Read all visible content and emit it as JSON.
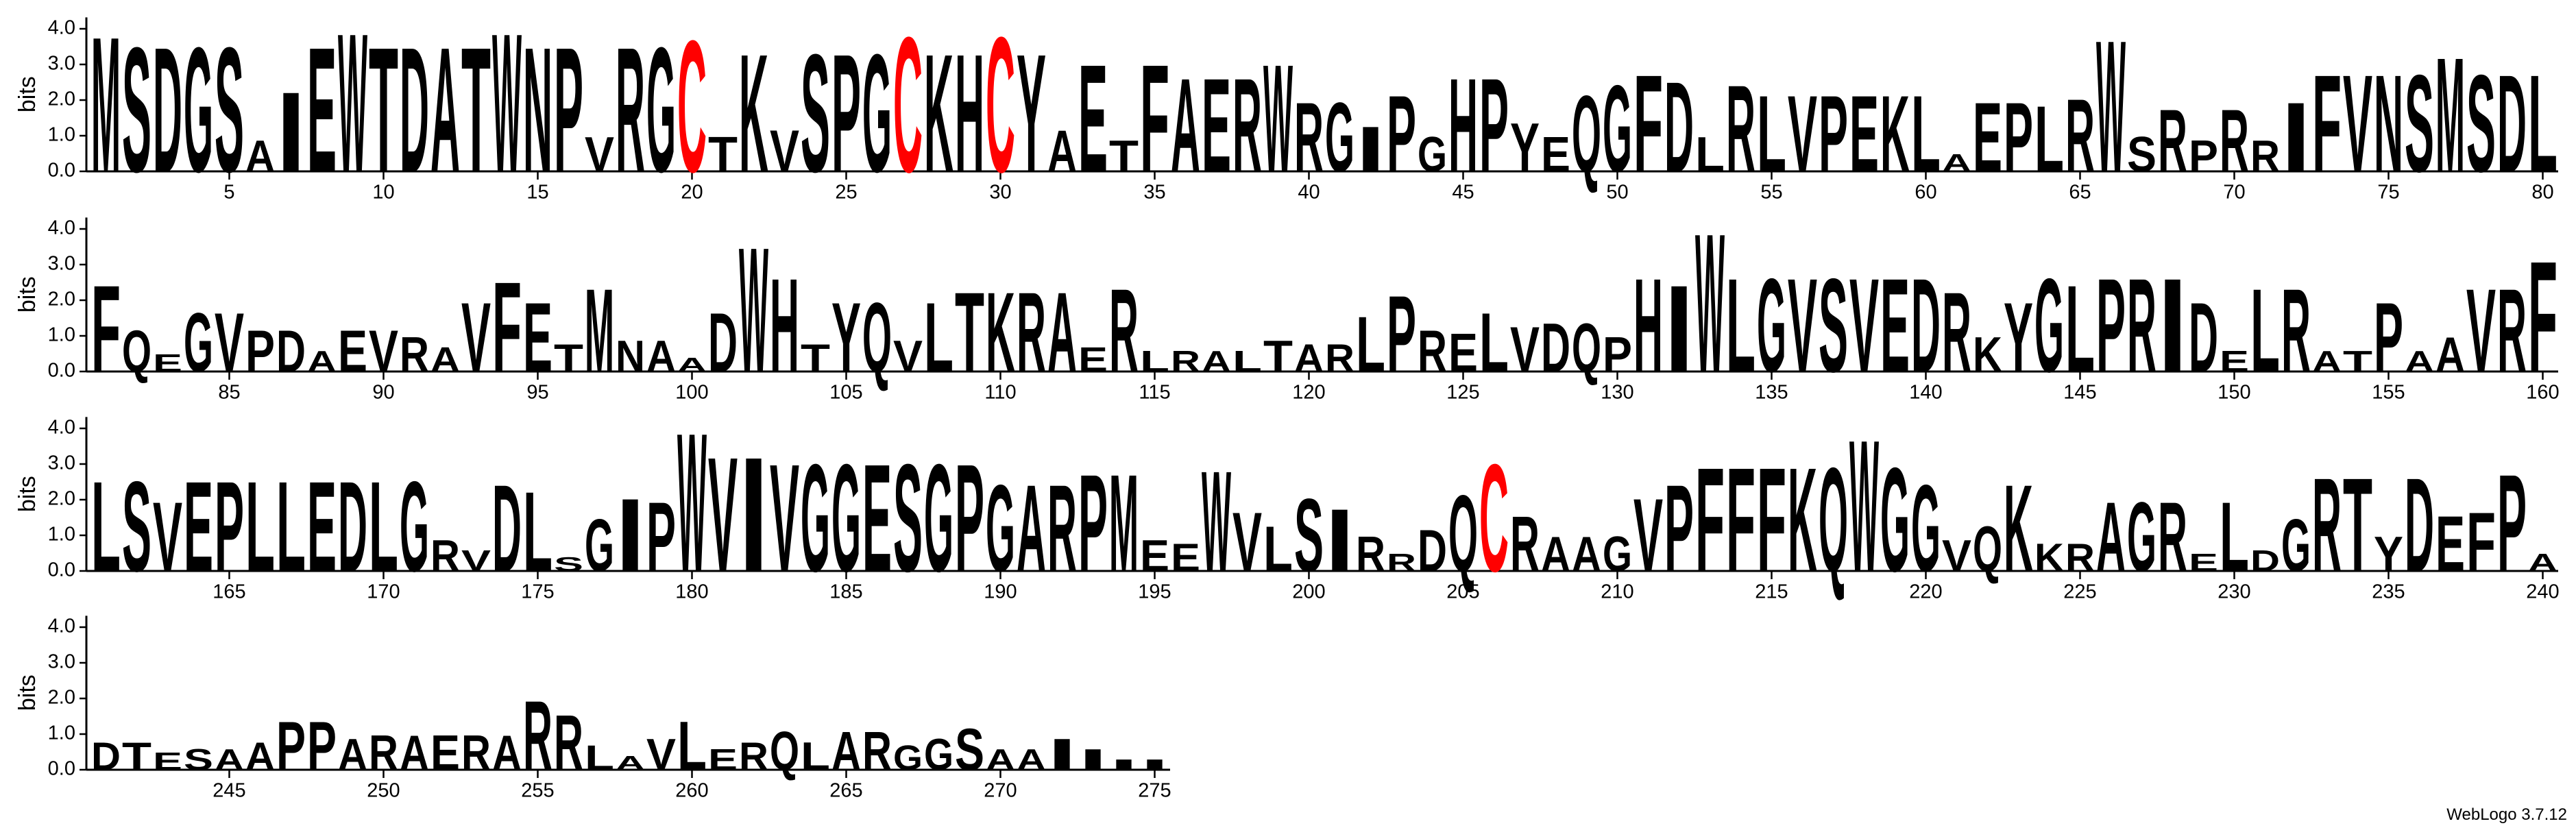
{
  "chart_data": [
    {
      "type": "logo",
      "y_label": "bits",
      "color": "#000000",
      "letter_colors": {
        "C": "#ff0000"
      },
      "xlim": [
        0.5,
        80.5
      ],
      "ylim": [
        0,
        4.32
      ],
      "yticks": [
        {
          "value": 0,
          "label": "0.0"
        },
        {
          "value": 1,
          "label": "1.0"
        },
        {
          "value": 2,
          "label": "2.0"
        },
        {
          "value": 3,
          "label": "3.0"
        },
        {
          "value": 4,
          "label": "4.0"
        }
      ],
      "xticks": [
        5,
        10,
        15,
        20,
        25,
        30,
        35,
        40,
        45,
        50,
        55,
        60,
        65,
        70,
        75,
        80
      ],
      "x": [
        1,
        2,
        3,
        4,
        5,
        6,
        7,
        8,
        9,
        10,
        11,
        12,
        13,
        14,
        15,
        16,
        17,
        18,
        19,
        20,
        21,
        22,
        23,
        24,
        25,
        26,
        27,
        28,
        29,
        30,
        31,
        32,
        33,
        34,
        35,
        36,
        37,
        38,
        39,
        40,
        41,
        42,
        43,
        44,
        45,
        46,
        47,
        48,
        49,
        50,
        51,
        52,
        53,
        54,
        55,
        56,
        57,
        58,
        59,
        60,
        61,
        62,
        63,
        64,
        65,
        66,
        67,
        68,
        69,
        70,
        71,
        72,
        73,
        74,
        75,
        76,
        77,
        78,
        79,
        80
      ],
      "letters": [
        "M",
        "S",
        "D",
        "G",
        "S",
        "A",
        "I",
        "E",
        "W",
        "T",
        "D",
        "A",
        "T",
        "W",
        "N",
        "P",
        "V",
        "R",
        "G",
        "C",
        "T",
        "K",
        "V",
        "S",
        "P",
        "G",
        "C",
        "K",
        "H",
        "C",
        "Y",
        "A",
        "E",
        "T",
        "F",
        "A",
        "E",
        "R",
        "W",
        "R",
        "G",
        "I",
        "P",
        "G",
        "H",
        "P",
        "Y",
        "E",
        "Q",
        "G",
        "F",
        "D",
        "L",
        "R",
        "L",
        "V",
        "P",
        "E",
        "K",
        "L",
        "A",
        "E",
        "P",
        "L",
        "R",
        "W",
        "S",
        "R",
        "P",
        "R",
        "R",
        "I",
        "F",
        "V",
        "N",
        "S",
        "M",
        "S",
        "D",
        "L"
      ],
      "values": [
        3.9,
        3.6,
        3.6,
        3.6,
        3.6,
        0.9,
        2.3,
        3.6,
        4.0,
        3.6,
        3.6,
        3.6,
        3.6,
        4.0,
        3.6,
        3.6,
        1.0,
        3.6,
        3.6,
        3.8,
        1.0,
        3.4,
        1.2,
        3.4,
        3.4,
        3.4,
        3.9,
        3.4,
        3.4,
        3.9,
        3.4,
        1.2,
        3.1,
        0.9,
        3.1,
        2.7,
        2.7,
        2.7,
        3.1,
        2.0,
        2.0,
        1.3,
        2.2,
        1.0,
        2.7,
        2.7,
        1.4,
        1.0,
        2.2,
        2.5,
        2.8,
        2.6,
        1.0,
        2.5,
        2.2,
        2.2,
        2.2,
        2.2,
        2.2,
        2.2,
        0.5,
        2.0,
        2.0,
        1.9,
        2.1,
        3.8,
        1.0,
        1.8,
        0.9,
        1.8,
        0.9,
        2.0,
        2.8,
        2.8,
        2.8,
        2.8,
        3.3,
        2.8,
        2.8,
        2.8
      ]
    },
    {
      "type": "logo",
      "y_label": "bits",
      "color": "#000000",
      "letter_colors": {
        "C": "#ff0000"
      },
      "xlim": [
        80.5,
        160.5
      ],
      "ylim": [
        0,
        4.32
      ],
      "yticks": [
        {
          "value": 0,
          "label": "0.0"
        },
        {
          "value": 1,
          "label": "1.0"
        },
        {
          "value": 2,
          "label": "2.0"
        },
        {
          "value": 3,
          "label": "3.0"
        },
        {
          "value": 4,
          "label": "4.0"
        }
      ],
      "xticks": [
        85,
        90,
        95,
        100,
        105,
        110,
        115,
        120,
        125,
        130,
        135,
        140,
        145,
        150,
        155,
        160
      ],
      "x": [
        81,
        82,
        83,
        84,
        85,
        86,
        87,
        88,
        89,
        90,
        91,
        92,
        93,
        94,
        95,
        96,
        97,
        98,
        99,
        100,
        101,
        102,
        103,
        104,
        105,
        106,
        107,
        108,
        109,
        110,
        111,
        112,
        113,
        114,
        115,
        116,
        117,
        118,
        119,
        120,
        121,
        122,
        123,
        124,
        125,
        126,
        127,
        128,
        129,
        130,
        131,
        132,
        133,
        134,
        135,
        136,
        137,
        138,
        139,
        140,
        141,
        142,
        143,
        144,
        145,
        146,
        147,
        148,
        149,
        150,
        151,
        152,
        153,
        154,
        155,
        156,
        157,
        158,
        159,
        160
      ],
      "letters": [
        "F",
        "Q",
        "E",
        "G",
        "V",
        "P",
        "D",
        "A",
        "E",
        "V",
        "R",
        "A",
        "V",
        "F",
        "E",
        "T",
        "M",
        "N",
        "A",
        "A",
        "D",
        "W",
        "H",
        "T",
        "Y",
        "Q",
        "V",
        "L",
        "T",
        "K",
        "R",
        "A",
        "E",
        "R",
        "L",
        "R",
        "A",
        "L",
        "T",
        "A",
        "R",
        "L",
        "P",
        "R",
        "E",
        "L",
        "V",
        "D",
        "Q",
        "P",
        "H",
        "I",
        "W",
        "L",
        "G",
        "V",
        "S",
        "V",
        "E",
        "D",
        "R",
        "K",
        "Y",
        "G",
        "L",
        "P",
        "R",
        "I",
        "D",
        "E",
        "L",
        "R",
        "A",
        "T",
        "P",
        "A",
        "A",
        "V",
        "R",
        "F"
      ],
      "values": [
        2.5,
        1.2,
        0.5,
        1.7,
        1.7,
        1.2,
        1.2,
        0.6,
        1.2,
        1.2,
        1.0,
        0.7,
        2.0,
        2.6,
        2.0,
        0.8,
        2.4,
        0.9,
        0.9,
        0.4,
        1.7,
        3.6,
        2.7,
        0.8,
        2.0,
        2.0,
        0.9,
        2.0,
        2.3,
        2.3,
        2.3,
        2.3,
        0.7,
        2.4,
        0.6,
        0.6,
        0.6,
        0.6,
        0.9,
        0.8,
        0.8,
        1.6,
        2.2,
        1.2,
        1.1,
        1.7,
        1.3,
        1.4,
        1.4,
        1.0,
        2.7,
        2.5,
        4.0,
        2.7,
        2.7,
        2.7,
        2.7,
        2.7,
        2.7,
        2.7,
        2.3,
        1.0,
        2.0,
        2.7,
        2.5,
        2.7,
        2.7,
        2.7,
        2.0,
        0.6,
        2.4,
        2.4,
        0.6,
        0.6,
        2.0,
        0.6,
        1.0,
        2.4,
        2.4,
        3.2
      ]
    },
    {
      "type": "logo",
      "y_label": "bits",
      "color": "#000000",
      "letter_colors": {
        "C": "#ff0000"
      },
      "xlim": [
        160.5,
        240.5
      ],
      "ylim": [
        0,
        4.32
      ],
      "yticks": [
        {
          "value": 0,
          "label": "0.0"
        },
        {
          "value": 1,
          "label": "1.0"
        },
        {
          "value": 2,
          "label": "2.0"
        },
        {
          "value": 3,
          "label": "3.0"
        },
        {
          "value": 4,
          "label": "4.0"
        }
      ],
      "xticks": [
        165,
        170,
        175,
        180,
        185,
        190,
        195,
        200,
        205,
        210,
        215,
        220,
        225,
        230,
        235,
        240
      ],
      "x": [
        161,
        162,
        163,
        164,
        165,
        166,
        167,
        168,
        169,
        170,
        171,
        172,
        173,
        174,
        175,
        176,
        177,
        178,
        179,
        180,
        181,
        182,
        183,
        184,
        185,
        186,
        187,
        188,
        189,
        190,
        191,
        192,
        193,
        194,
        195,
        196,
        197,
        198,
        199,
        200,
        201,
        202,
        203,
        204,
        205,
        206,
        207,
        208,
        209,
        210,
        211,
        212,
        213,
        214,
        215,
        216,
        217,
        218,
        219,
        220,
        221,
        222,
        223,
        224,
        225,
        226,
        227,
        228,
        229,
        230,
        231,
        232,
        233,
        234,
        235,
        236,
        237,
        238,
        239,
        240
      ],
      "letters": [
        "L",
        "S",
        "V",
        "E",
        "P",
        "L",
        "L",
        "E",
        "D",
        "L",
        "G",
        "R",
        "V",
        "D",
        "L",
        "S",
        "G",
        "I",
        "P",
        "W",
        "V",
        "I",
        "V",
        "G",
        "G",
        "E",
        "S",
        "G",
        "P",
        "G",
        "A",
        "R",
        "P",
        "M",
        "E",
        "E",
        "W",
        "V",
        "L",
        "S",
        "I",
        "R",
        "R",
        "D",
        "Q",
        "C",
        "R",
        "A",
        "A",
        "G",
        "V",
        "P",
        "F",
        "F",
        "F",
        "K",
        "Q",
        "W",
        "G",
        "G",
        "V",
        "Q",
        "K",
        "K",
        "R",
        "A",
        "G",
        "R",
        "E",
        "L",
        "D",
        "G",
        "R",
        "T",
        "Y",
        "D",
        "E",
        "F",
        "P",
        "A"
      ],
      "values": [
        2.6,
        2.6,
        2.0,
        2.6,
        2.6,
        2.6,
        2.6,
        2.6,
        2.6,
        2.6,
        2.6,
        0.9,
        0.6,
        2.5,
        2.3,
        0.4,
        1.5,
        2.1,
        2.0,
        4.0,
        3.3,
        3.3,
        3.1,
        3.1,
        3.1,
        3.1,
        3.1,
        3.1,
        3.1,
        2.5,
        2.5,
        2.5,
        2.8,
        2.8,
        0.9,
        0.8,
        2.9,
        1.7,
        1.3,
        2.1,
        1.8,
        1.0,
        0.5,
        1.2,
        2.2,
        3.1,
        1.6,
        1.0,
        1.0,
        1.0,
        2.1,
        2.5,
        3.0,
        3.0,
        3.0,
        3.0,
        3.0,
        3.8,
        3.0,
        2.5,
        0.9,
        1.3,
        2.5,
        0.8,
        0.8,
        2.0,
        2.0,
        2.0,
        0.5,
        2.0,
        0.6,
        1.5,
        2.7,
        2.7,
        1.0,
        2.7,
        1.6,
        1.7,
        2.8,
        0.5
      ]
    },
    {
      "type": "logo",
      "y_label": "bits",
      "color": "#000000",
      "letter_colors": {
        "C": "#ff0000"
      },
      "xlim": [
        240.5,
        275.5
      ],
      "ylim": [
        0,
        4.32
      ],
      "yticks": [
        {
          "value": 0,
          "label": "0.0"
        },
        {
          "value": 1,
          "label": "1.0"
        },
        {
          "value": 2,
          "label": "2.0"
        },
        {
          "value": 3,
          "label": "3.0"
        },
        {
          "value": 4,
          "label": "4.0"
        }
      ],
      "xticks": [
        245,
        250,
        255,
        260,
        265,
        270,
        275
      ],
      "x": [
        241,
        242,
        243,
        244,
        245,
        246,
        247,
        248,
        249,
        250,
        251,
        252,
        253,
        254,
        255,
        256,
        257,
        258,
        259,
        260,
        261,
        262,
        263,
        264,
        265,
        266,
        267,
        268,
        269,
        270,
        271,
        272,
        273,
        274,
        275
      ],
      "letters": [
        "D",
        "T",
        "E",
        "S",
        "A",
        "A",
        "P",
        "P",
        "A",
        "R",
        "A",
        "E",
        "R",
        "A",
        "R",
        "R",
        "L",
        "A",
        "V",
        "L",
        "E",
        "R",
        "Q",
        "L",
        "A",
        "R",
        "G",
        "G",
        "S",
        "A",
        "A",
        "I",
        "I",
        "I",
        "I"
      ],
      "values": [
        0.8,
        0.8,
        0.5,
        0.6,
        0.6,
        0.8,
        1.4,
        1.4,
        0.9,
        1.0,
        1.0,
        1.0,
        1.0,
        1.0,
        2.0,
        1.6,
        0.7,
        0.4,
        0.9,
        1.4,
        0.6,
        0.8,
        1.1,
        0.8,
        1.1,
        1.1,
        0.7,
        0.9,
        1.2,
        0.6,
        0.6,
        0.9,
        0.6,
        0.3,
        0.3
      ]
    }
  ],
  "footer": "WebLogo 3.7.12"
}
